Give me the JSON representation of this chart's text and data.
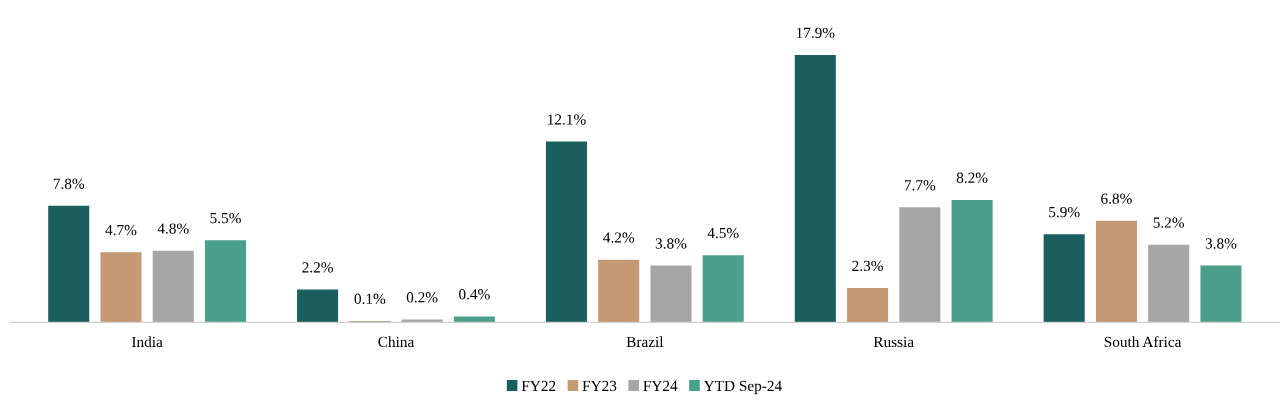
{
  "chart_data": {
    "type": "bar",
    "categories": [
      "India",
      "China",
      "Brazil",
      "Russia",
      "South Africa"
    ],
    "series": [
      {
        "name": "FY22",
        "color": "#1b5e5e",
        "values": [
          7.8,
          2.2,
          12.1,
          17.9,
          5.9
        ],
        "value_labels": [
          "7.8%",
          "2.2%",
          "12.1%",
          "17.9%",
          "5.9%"
        ]
      },
      {
        "name": "FY23",
        "color": "#c49a72",
        "values": [
          4.7,
          0.1,
          4.2,
          2.3,
          6.8
        ],
        "value_labels": [
          "4.7%",
          "0.1%",
          "4.2%",
          "2.3%",
          "6.8%"
        ]
      },
      {
        "name": "FY24",
        "color": "#a6a6a6",
        "values": [
          4.8,
          0.2,
          3.8,
          7.7,
          5.2
        ],
        "value_labels": [
          "4.8%",
          "0.2%",
          "3.8%",
          "7.7%",
          "5.2%"
        ]
      },
      {
        "name": "YTD Sep-24",
        "color": "#4aa08a",
        "values": [
          5.5,
          0.4,
          4.5,
          8.2,
          3.8
        ],
        "value_labels": [
          "5.5%",
          "0.4%",
          "4.5%",
          "8.2%",
          "3.8%"
        ]
      }
    ],
    "legend": "bottom",
    "grid": false
  }
}
